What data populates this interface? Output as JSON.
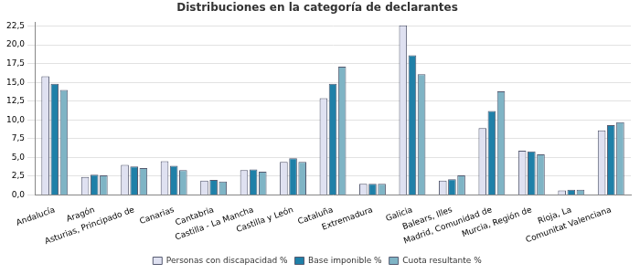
{
  "chart_data": {
    "type": "bar",
    "title": "Distribuciones en la categoría de declarantes",
    "categories": [
      "Andalucía",
      "Aragón",
      "Asturias, Principado de",
      "Canarias",
      "Cantabria",
      "Castilla - La Mancha",
      "Castilla y León",
      "Cataluña",
      "Extremadura",
      "Galicia",
      "Balears, Illes",
      "Madrid, Comunidad de",
      "Murcia, Región de",
      "Rioja, La",
      "Comunitat Valenciana"
    ],
    "series": [
      {
        "name": "Personas con discapacidad %",
        "color": "#dfe1f1",
        "values": [
          15.8,
          2.4,
          4.0,
          4.5,
          1.9,
          3.3,
          4.4,
          12.9,
          1.5,
          22.6,
          1.9,
          8.9,
          5.9,
          0.6,
          8.6
        ]
      },
      {
        "name": "Base imponible %",
        "color": "#1f80a8",
        "values": [
          14.8,
          2.7,
          3.8,
          3.9,
          2.0,
          3.4,
          4.9,
          14.8,
          1.5,
          18.6,
          2.1,
          11.2,
          5.8,
          0.7,
          9.3
        ]
      },
      {
        "name": "Cuota resultante %",
        "color": "#7fb4c5",
        "values": [
          14.0,
          2.6,
          3.6,
          3.3,
          1.8,
          3.1,
          4.4,
          17.1,
          1.5,
          16.1,
          2.6,
          13.8,
          5.4,
          0.7,
          9.7
        ]
      }
    ],
    "ylim": [
      0,
      23
    ],
    "yticks": [
      {
        "value": 0,
        "label": "0,0"
      },
      {
        "value": 2.5,
        "label": "2,5"
      },
      {
        "value": 5,
        "label": "5,0"
      },
      {
        "value": 7.5,
        "label": "7,5"
      },
      {
        "value": 10,
        "label": "10,0"
      },
      {
        "value": 12.5,
        "label": "12,5"
      },
      {
        "value": 15,
        "label": "15,0"
      },
      {
        "value": 17.5,
        "label": "17,5"
      },
      {
        "value": 20,
        "label": "20,0"
      },
      {
        "value": 22.5,
        "label": "22,5"
      }
    ],
    "grid": true,
    "legend": "bottom"
  }
}
